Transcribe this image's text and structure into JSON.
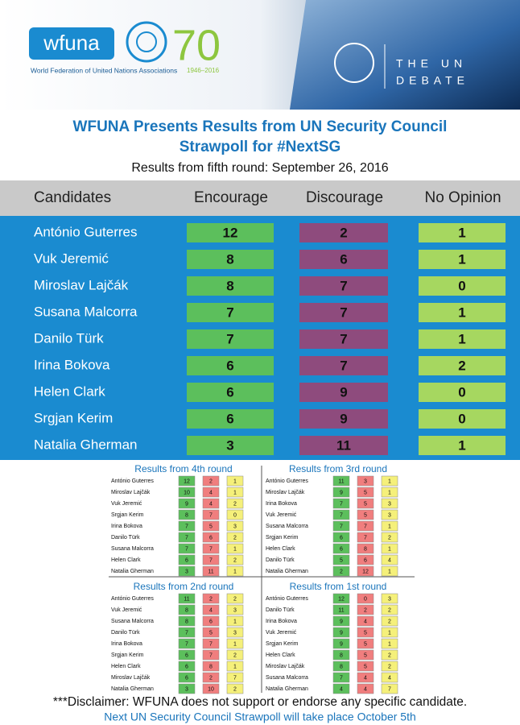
{
  "header": {
    "logo": "wfuna",
    "organization": "World Federation of United Nations Associations",
    "anniversary": "70",
    "years": "1946–2016",
    "debate_line1": "THE UN",
    "debate_line2": "DEBATE"
  },
  "title_line1": "WFUNA Presents Results from UN Security Council",
  "title_line2": "Strawpoll for #NextSG",
  "subtitle": "Results from fifth round: September 26, 2016",
  "main_table": {
    "columns": [
      "Candidates",
      "Encourage",
      "Discourage",
      "No Opinion"
    ],
    "rows": [
      [
        "António Guterres",
        12,
        2,
        1
      ],
      [
        "Vuk Jeremić",
        8,
        6,
        1
      ],
      [
        "Miroslav Lajčák",
        8,
        7,
        0
      ],
      [
        "Susana Malcorra",
        7,
        7,
        1
      ],
      [
        "Danilo Türk",
        7,
        7,
        1
      ],
      [
        "Irina Bokova",
        6,
        7,
        2
      ],
      [
        "Helen Clark",
        6,
        9,
        0
      ],
      [
        "Srgjan Kerim",
        6,
        9,
        0
      ],
      [
        "Natalia Gherman",
        3,
        11,
        1
      ]
    ]
  },
  "previous_rounds": [
    {
      "title": "Results from 4th round",
      "rows": [
        [
          "António Guterres",
          12,
          2,
          1
        ],
        [
          "Miroslav Lajčák",
          10,
          4,
          1
        ],
        [
          "Vuk Jeremić",
          9,
          4,
          2
        ],
        [
          "Srgjan Kerim",
          8,
          7,
          0
        ],
        [
          "Irina Bokova",
          7,
          5,
          3
        ],
        [
          "Danilo Türk",
          7,
          6,
          2
        ],
        [
          "Susana Malcorra",
          7,
          7,
          1
        ],
        [
          "Helen Clark",
          6,
          7,
          2
        ],
        [
          "Natalia Gherman",
          3,
          11,
          1
        ]
      ]
    },
    {
      "title": "Results from 3rd round",
      "rows": [
        [
          "António Guterres",
          11,
          3,
          1
        ],
        [
          "Miroslav Lajčák",
          9,
          5,
          1
        ],
        [
          "Irina Bokova",
          7,
          5,
          3
        ],
        [
          "Vuk Jeremić",
          7,
          5,
          3
        ],
        [
          "Susana Malcorra",
          7,
          7,
          1
        ],
        [
          "Srgjan Kerim",
          6,
          7,
          2
        ],
        [
          "Helen Clark",
          6,
          8,
          1
        ],
        [
          "Danilo Türk",
          5,
          6,
          4
        ],
        [
          "Natalia Gherman",
          2,
          12,
          1
        ]
      ]
    },
    {
      "title": "Results from 2nd round",
      "rows": [
        [
          "António Guterres",
          11,
          2,
          2
        ],
        [
          "Vuk Jeremić",
          8,
          4,
          3
        ],
        [
          "Susana Malcorra",
          8,
          6,
          1
        ],
        [
          "Danilo Türk",
          7,
          5,
          3
        ],
        [
          "Irina Bokova",
          7,
          7,
          1
        ],
        [
          "Srgjan Kerim",
          6,
          7,
          2
        ],
        [
          "Helen Clark",
          6,
          8,
          1
        ],
        [
          "Miroslav Lajčák",
          6,
          2,
          7
        ],
        [
          "Natalia Gherman",
          3,
          10,
          2
        ]
      ]
    },
    {
      "title": "Results from 1st round",
      "rows": [
        [
          "António Guterres",
          12,
          0,
          3
        ],
        [
          "Danilo Türk",
          11,
          2,
          2
        ],
        [
          "Irina Bokova",
          9,
          4,
          2
        ],
        [
          "Vuk Jeremić",
          9,
          5,
          1
        ],
        [
          "Srgjan Kerim",
          9,
          5,
          1
        ],
        [
          "Helen Clark",
          8,
          5,
          2
        ],
        [
          "Miroslav Lajčák",
          8,
          5,
          2
        ],
        [
          "Susana Malcorra",
          7,
          4,
          4
        ],
        [
          "Natalia Gherman",
          4,
          4,
          7
        ]
      ]
    }
  ],
  "footer": {
    "disclaimer": "***Disclaimer: WFUNA does not support or endorse any specific candidate.",
    "next": "Next UN Security Council Strawpoll will take place October 5th"
  }
}
